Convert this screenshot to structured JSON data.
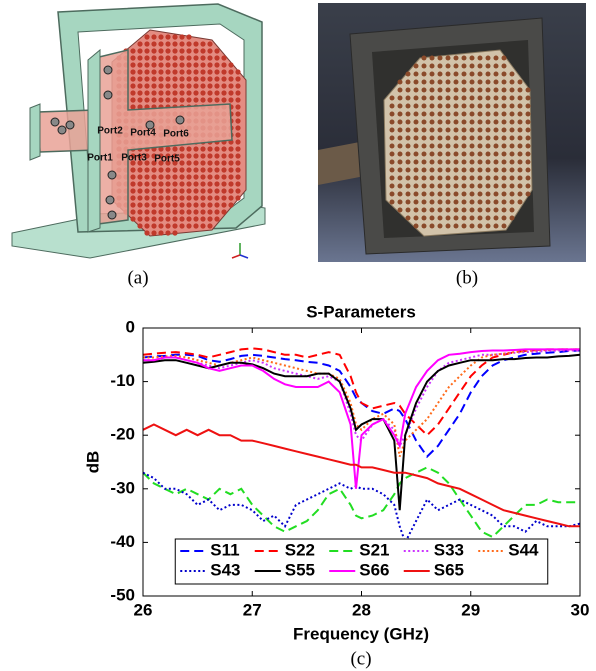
{
  "panel_a": {
    "caption": "(a)",
    "ports": [
      "Port1",
      "Port2",
      "Port3",
      "Port4",
      "Port5",
      "Port6"
    ]
  },
  "panel_b": {
    "caption": "(b)"
  },
  "panel_c": {
    "caption": "(c)"
  },
  "chart_data": {
    "type": "line",
    "title": "S-Parameters",
    "x_label": "Frequency (GHz)",
    "y_label": "dB",
    "xlim": [
      26,
      30
    ],
    "xticks": [
      26,
      27,
      28,
      29,
      30
    ],
    "ylim": [
      -50,
      0
    ],
    "yticks": [
      -50,
      -40,
      -30,
      -20,
      -10,
      0
    ],
    "grid": false,
    "legend": "lower center",
    "legend_columns": 5,
    "x": [
      26.0,
      26.1,
      26.2,
      26.3,
      26.4,
      26.5,
      26.6,
      26.7,
      26.8,
      26.9,
      27.0,
      27.1,
      27.2,
      27.3,
      27.4,
      27.5,
      27.6,
      27.7,
      27.8,
      27.9,
      27.95,
      28.0,
      28.1,
      28.2,
      28.3,
      28.35,
      28.4,
      28.5,
      28.6,
      28.7,
      28.8,
      28.9,
      29.0,
      29.1,
      29.2,
      29.3,
      29.4,
      29.5,
      29.6,
      29.7,
      29.8,
      29.9,
      30.0
    ],
    "series": [
      {
        "name": "S11",
        "color": "#0000ff",
        "dash": "dashed",
        "values": [
          -5.5,
          -5.3,
          -5.2,
          -5,
          -5,
          -5.2,
          -6,
          -6.3,
          -5.8,
          -5.2,
          -5,
          -5.2,
          -5.5,
          -5.8,
          -6,
          -6.3,
          -6.5,
          -7,
          -8,
          -11,
          -13,
          -14,
          -15.5,
          -16,
          -15,
          -15.5,
          -17,
          -21,
          -24,
          -22,
          -19,
          -16,
          -12,
          -9,
          -7,
          -6,
          -5.5,
          -5,
          -4.8,
          -4.6,
          -4.5,
          -4.3,
          -4.2
        ]
      },
      {
        "name": "S22",
        "color": "#ff0000",
        "dash": "dashed",
        "values": [
          -5,
          -4.8,
          -4.6,
          -4.5,
          -4.7,
          -5,
          -5.5,
          -5,
          -4.5,
          -4,
          -3.8,
          -4,
          -4.5,
          -5,
          -5,
          -5.5,
          -5,
          -4.5,
          -5,
          -9,
          -12,
          -14,
          -15,
          -14.5,
          -14,
          -14.5,
          -16,
          -18,
          -20,
          -18,
          -15,
          -12,
          -9,
          -7,
          -5.5,
          -5,
          -4.5,
          -4.3,
          -4.1,
          -4,
          -4,
          -4,
          -4
        ]
      },
      {
        "name": "S21",
        "color": "#22dd22",
        "dash": "dashed",
        "values": [
          -27,
          -29,
          -30,
          -31,
          -30,
          -31,
          -32,
          -30,
          -31,
          -30,
          -33,
          -35,
          -37,
          -38,
          -37,
          -36,
          -34,
          -31,
          -30,
          -33,
          -35,
          -35.5,
          -35,
          -34,
          -31,
          -29,
          -28,
          -27,
          -26,
          -27,
          -29,
          -32,
          -35,
          -38,
          -39,
          -37,
          -35,
          -33,
          -33,
          -32,
          -32.5,
          -32.5,
          -32.5
        ]
      },
      {
        "name": "S33",
        "color": "#cc33ff",
        "dash": "dotted",
        "values": [
          -6,
          -6,
          -5.5,
          -5.5,
          -6,
          -6.5,
          -7,
          -7.5,
          -7,
          -6.5,
          -6,
          -6.5,
          -7.5,
          -8,
          -8.5,
          -9,
          -9.5,
          -9,
          -10,
          -16,
          -20,
          -21,
          -18,
          -17,
          -19,
          -22,
          -20,
          -15,
          -11,
          -8,
          -6.5,
          -6,
          -5.5,
          -5,
          -5,
          -4.8,
          -4.6,
          -4.5,
          -4.4,
          -4.3,
          -4.2,
          -4.2,
          -4.2
        ]
      },
      {
        "name": "S44",
        "color": "#ff6a1a",
        "dash": "dotted",
        "values": [
          -5.5,
          -5.5,
          -5.3,
          -5.2,
          -5.5,
          -6,
          -6.5,
          -7,
          -6.5,
          -6,
          -5.5,
          -6,
          -6.5,
          -7,
          -7.5,
          -8,
          -8.5,
          -8.5,
          -9.5,
          -14,
          -18,
          -19,
          -17,
          -16,
          -18,
          -24,
          -21,
          -19,
          -17,
          -14,
          -11,
          -9,
          -7,
          -5.5,
          -5,
          -4.8,
          -4.5,
          -4.3,
          -4.2,
          -4.1,
          -4,
          -4,
          -4
        ]
      },
      {
        "name": "S43",
        "color": "#0000cc",
        "dash": "dotted",
        "values": [
          -27,
          -28,
          -30,
          -30,
          -31,
          -33,
          -32,
          -34,
          -33,
          -33,
          -34,
          -36,
          -35,
          -37,
          -33,
          -32,
          -31,
          -30,
          -29,
          -30,
          -29.5,
          -30,
          -30,
          -31,
          -33,
          -37,
          -40,
          -36,
          -32,
          -34,
          -33,
          -32,
          -33,
          -34,
          -35,
          -37,
          -37,
          -38,
          -36,
          -37,
          -37,
          -37,
          -36.5
        ]
      },
      {
        "name": "S55",
        "color": "#000000",
        "dash": "solid",
        "values": [
          -6.5,
          -6.3,
          -6,
          -6,
          -6.5,
          -7,
          -7.5,
          -7,
          -6.5,
          -6.5,
          -6.8,
          -7.5,
          -8.5,
          -9,
          -9,
          -9,
          -8.5,
          -8.5,
          -10,
          -15,
          -19,
          -18,
          -17,
          -17,
          -21,
          -34,
          -20,
          -14,
          -10,
          -8,
          -7,
          -6.5,
          -6,
          -6,
          -6,
          -5.8,
          -5.8,
          -5.6,
          -5.5,
          -5.5,
          -5.3,
          -5.2,
          -5
        ]
      },
      {
        "name": "S66",
        "color": "#ff00ff",
        "dash": "solid",
        "values": [
          -6,
          -6,
          -5.5,
          -5.5,
          -6,
          -6.5,
          -7.5,
          -8,
          -7.5,
          -7,
          -7,
          -8,
          -9.5,
          -10.5,
          -11,
          -11,
          -11,
          -10,
          -12,
          -18,
          -30,
          -20,
          -18,
          -17,
          -20,
          -22,
          -16,
          -11,
          -8,
          -6,
          -5,
          -4.8,
          -4.5,
          -4.3,
          -4.2,
          -4.2,
          -4.1,
          -4,
          -4,
          -4,
          -4,
          -4,
          -4
        ]
      },
      {
        "name": "S65",
        "color": "#ee1111",
        "dash": "solid",
        "values": [
          -19,
          -18,
          -19,
          -20,
          -19,
          -20,
          -19,
          -20,
          -20,
          -21,
          -21,
          -21.5,
          -22,
          -22.5,
          -23,
          -23.5,
          -24,
          -24.5,
          -25,
          -25.5,
          -25.5,
          -26,
          -26,
          -26.5,
          -27,
          -27,
          -27,
          -27.5,
          -28,
          -29,
          -29.5,
          -30,
          -31,
          -32,
          -33,
          -34,
          -34.5,
          -35,
          -35.5,
          -36,
          -36.5,
          -37,
          -37
        ]
      }
    ]
  }
}
